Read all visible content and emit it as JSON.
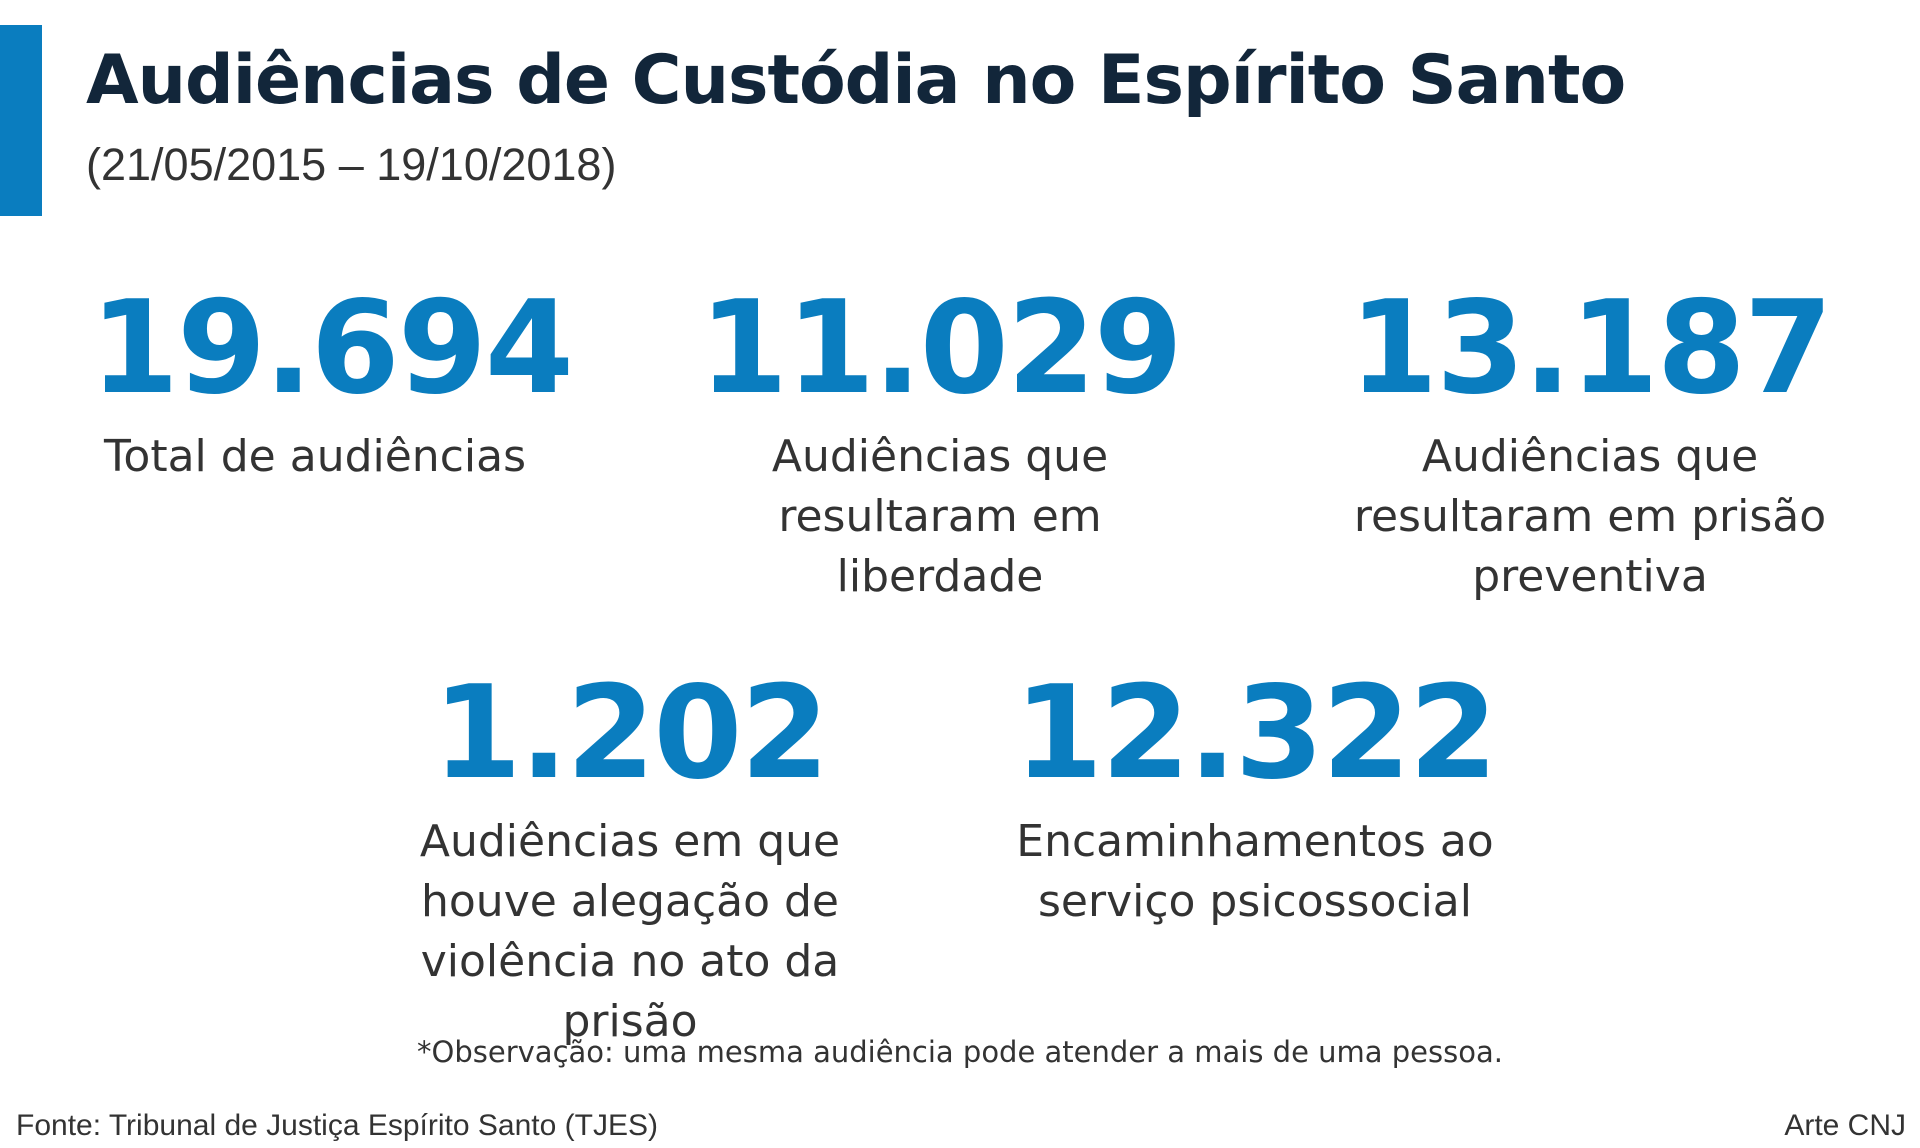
{
  "colors": {
    "accent": "#0a7dbf",
    "title": "#12263a",
    "text": "#333333"
  },
  "header": {
    "title": "Audiências de Custódia no Espírito Santo",
    "subtitle": "(21/05/2015 – 19/10/2018)"
  },
  "stats": [
    {
      "value": "19.694",
      "label": "Total de audiências"
    },
    {
      "value": "11.029",
      "label": "Audiências que resultaram em liberdade"
    },
    {
      "value": "13.187",
      "label": "Audiências que resultaram em prisão preventiva"
    },
    {
      "value": "1.202",
      "label": "Audiências em que houve alegação de violência no ato da prisão"
    },
    {
      "value": "12.322",
      "label": "Encaminhamentos ao serviço psicossocial"
    }
  ],
  "note": "*Observação: uma mesma audiência pode atender a mais de uma pessoa.",
  "footer": {
    "source": "Fonte: Tribunal de Justiça Espírito Santo (TJES)",
    "credit": "Arte CNJ"
  }
}
